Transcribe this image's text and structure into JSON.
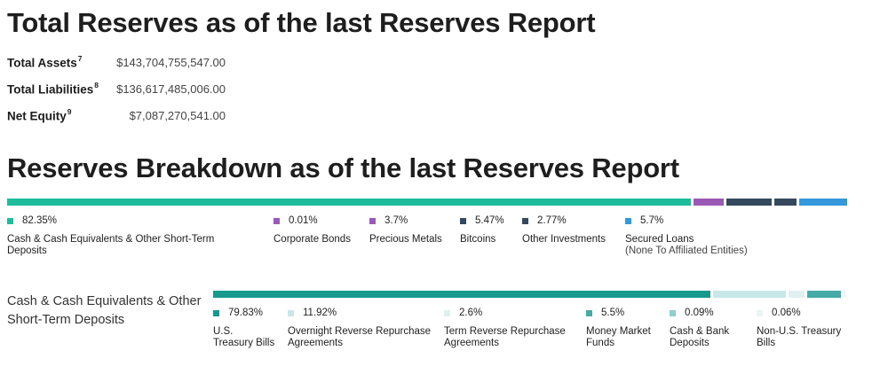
{
  "title": "Total Reserves as of the last Reserves Report",
  "totals": [
    {
      "label": "Total Assets",
      "sup": "7",
      "value": "$143,704,755,547.00"
    },
    {
      "label": "Total Liabilities",
      "sup": "8",
      "value": "$136,617,485,006.00"
    },
    {
      "label": "Net Equity",
      "sup": "9",
      "value": "$7,087,270,541.00"
    }
  ],
  "breakdown_title": "Reserves Breakdown as of the last Reserves Report",
  "colors": {
    "cash": "#1fbc9c",
    "corporate_bonds": "#9b59b6",
    "precious_metals": "#9b59b6",
    "bitcoins": "#34495e",
    "other_investments": "#34495e",
    "secured_loans": "#3498db",
    "teal_dark": "#179a8e",
    "teal_light": "#c8e8e8",
    "teal_mid": "#46aaa7",
    "teal_faint": "#e9f5f4"
  },
  "breakdown": [
    {
      "pct": "82.35%",
      "label": "Cash & Cash Equivalents & Other Short-Term Deposits",
      "sub": "",
      "color": "#1fbc9c",
      "value": 82.35
    },
    {
      "pct": "0.01%",
      "label": "Corporate Bonds",
      "sub": "",
      "color": "#9b59b6",
      "value": 0.01
    },
    {
      "pct": "3.7%",
      "label": "Precious Metals",
      "sub": "",
      "color": "#9b59b6",
      "value": 3.7
    },
    {
      "pct": "5.47%",
      "label": "Bitcoins",
      "sub": "",
      "color": "#34495e",
      "value": 5.47
    },
    {
      "pct": "2.77%",
      "label": "Other Investments",
      "sub": "",
      "color": "#34495e",
      "value": 2.77
    },
    {
      "pct": "5.7%",
      "label": "Secured Loans",
      "sub": "(None To Affiliated Entities)",
      "color": "#3498db",
      "value": 5.7
    }
  ],
  "cash_title": "Cash & Cash Equivalents & Other Short-Term Deposits",
  "cash_breakdown": [
    {
      "pct": "79.83%",
      "label": "U.S. Treasury Bills",
      "color": "#179a8e",
      "value": 79.83
    },
    {
      "pct": "11.92%",
      "label": "Overnight Reverse Repurchase Agreements",
      "color": "#c8e8e8",
      "value": 11.92
    },
    {
      "pct": "2.6%",
      "label": "Term Reverse Repurchase Agreements",
      "color": "#dff0f0",
      "value": 2.6
    },
    {
      "pct": "5.5%",
      "label": "Money Market Funds",
      "color": "#46aaa7",
      "value": 5.5
    },
    {
      "pct": "0.09%",
      "label": "Cash & Bank Deposits",
      "color": "#8fcfcb",
      "value": 0.09
    },
    {
      "pct": "0.06%",
      "label": "Non-U.S. Treasury Bills",
      "color": "#e9f5f4",
      "value": 0.06
    }
  ]
}
